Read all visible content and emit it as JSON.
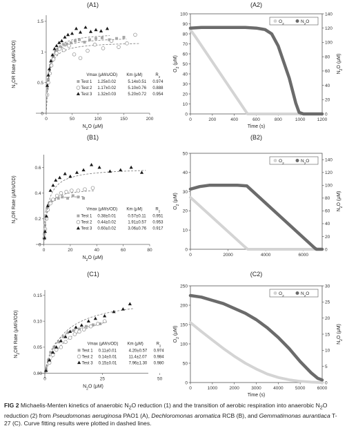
{
  "caption": {
    "label": "FIG 2",
    "p1": "Michaelis-Menten kinetics of anaerobic N",
    "p2": "O reduction (1) and the transition of aerobic respiration into anaerobic N",
    "p3": "O reduction (2) from ",
    "org1": "Pseudomonas aeruginosa",
    "p4": " PAO1 (A), ",
    "org2": "Dechloromonas aromatica",
    "p5": " RCB (B), and ",
    "org3": "Gemmatimonas aurantiaca",
    "p6": " T-27 (C). Curve fitting results were plotted in dashed lines.",
    "sub": "2"
  },
  "chart_data": [
    {
      "id": "A1",
      "type": "scatter",
      "title": "(A1)",
      "xlabel": "N2O (μM)",
      "ylabel": "N2OR Rate (μM/s/OD)",
      "xlim": [
        -20,
        200
      ],
      "ylim": [
        0,
        1.6
      ],
      "xticks": [
        0,
        50,
        100,
        150,
        200
      ],
      "yticks": [
        0,
        0.5,
        1,
        1.5
      ],
      "ytick_labels": [
        "0",
        "0.5",
        "1",
        "1.5"
      ],
      "legend_header": [
        "",
        "Vmax (μM/s/OD)",
        "Km (μM)",
        "R2"
      ],
      "series": [
        {
          "name": "Test 1",
          "vmax": "1.25±0.02",
          "km": "5.14±0.51",
          "r2": "0.974",
          "marker": "square",
          "color": "#a8a8a8",
          "x": [
            2,
            4,
            6,
            8,
            10,
            14,
            18,
            22,
            28,
            34,
            40,
            48,
            56,
            64,
            74,
            84,
            96,
            108,
            122,
            136,
            150
          ],
          "y": [
            0.4,
            0.55,
            0.66,
            0.78,
            0.86,
            0.93,
            1.0,
            1.04,
            1.08,
            1.12,
            1.13,
            1.15,
            1.18,
            1.2,
            1.16,
            1.2,
            1.22,
            1.23,
            1.2,
            1.22,
            1.24
          ],
          "fit": {
            "vmax": 1.25,
            "km": 5.14
          }
        },
        {
          "name": "Test 2",
          "vmax": "1.17±0.02",
          "km": "5.10±0.76",
          "r2": "0.888",
          "marker": "circle-open",
          "color": "#9a9a9a",
          "x": [
            2,
            4,
            7,
            10,
            14,
            20,
            26,
            34,
            44,
            54,
            66,
            80,
            94,
            110,
            126,
            140,
            156,
            172
          ],
          "y": [
            0.3,
            0.5,
            0.65,
            0.78,
            0.88,
            0.98,
            1.05,
            1.03,
            1.1,
            0.96,
            0.9,
            1.02,
            1.12,
            1.06,
            1.18,
            1.08,
            1.14,
            1.28
          ],
          "fit": {
            "vmax": 1.17,
            "km": 5.1
          }
        },
        {
          "name": "Test 3",
          "vmax": "1.32±0.03",
          "km": "5.20±0.72",
          "r2": "0.954",
          "marker": "triangle",
          "color": "#1a1a1a",
          "x": [
            2,
            4,
            6,
            9,
            12,
            16,
            20,
            25,
            30,
            36,
            42,
            50,
            58,
            66,
            76,
            86,
            96,
            106,
            118
          ],
          "y": [
            0.45,
            0.62,
            0.72,
            0.85,
            0.95,
            1.05,
            1.1,
            1.15,
            1.18,
            1.24,
            1.28,
            1.3,
            1.38,
            1.32,
            1.4,
            1.33,
            1.36,
            1.34,
            1.38
          ],
          "fit": {
            "vmax": 1.32,
            "km": 5.2
          }
        }
      ]
    },
    {
      "id": "A2",
      "type": "line",
      "title": "(A2)",
      "xlabel": "Time (s)",
      "ylabel": "O2 (μM)",
      "y2label": "N2O (μM)",
      "xlim": [
        0,
        1200
      ],
      "ylim": [
        0,
        100
      ],
      "y2lim": [
        0,
        140
      ],
      "xticks": [
        0,
        200,
        400,
        600,
        800,
        1000,
        1200
      ],
      "yticks": [
        0,
        10,
        20,
        30,
        40,
        50,
        60,
        70,
        80,
        90,
        100
      ],
      "y2ticks": [
        0,
        20,
        40,
        60,
        80,
        100,
        120,
        140
      ],
      "legend_position": "top-right",
      "series": [
        {
          "name": "O2",
          "axis": "left",
          "color": "#d4d4d4",
          "x": [
            0,
            40,
            520,
            1200
          ],
          "y": [
            84,
            78,
            0,
            0
          ]
        },
        {
          "name": "N2O",
          "axis": "right",
          "color": "#6b6b6b",
          "x": [
            0,
            100,
            300,
            500,
            600,
            680,
            740,
            800,
            900,
            960,
            990,
            1030,
            1200
          ],
          "y": [
            120,
            121,
            121,
            121,
            120,
            118,
            112,
            95,
            50,
            15,
            2,
            0,
            0
          ]
        }
      ]
    },
    {
      "id": "B1",
      "type": "scatter",
      "title": "(B1)",
      "xlabel": "N2O (μM)",
      "ylabel": "N2OR Rate (μM/s/OD)",
      "xlim": [
        -6,
        80
      ],
      "ylim": [
        0,
        0.7
      ],
      "xticks": [
        0,
        20,
        40,
        60,
        80
      ],
      "yticks": [
        0,
        0.2,
        0.4,
        0.6
      ],
      "ytick_labels": [
        "0",
        "0.2",
        "0.4",
        "0.6"
      ],
      "legend_header": [
        "",
        "Vmax (μM/s/OD)",
        "Km (μM)",
        "R2"
      ],
      "series": [
        {
          "name": "Test 1",
          "vmax": "0.38±0.01",
          "km": "0.57±0.11",
          "r2": "0.951",
          "marker": "square",
          "color": "#a8a8a8",
          "x": [
            0.3,
            0.8,
            1.5,
            2.5,
            4,
            6,
            8,
            11,
            14,
            18,
            22,
            26,
            30
          ],
          "y": [
            0.08,
            0.15,
            0.22,
            0.28,
            0.32,
            0.34,
            0.35,
            0.36,
            0.37,
            0.36,
            0.38,
            0.37,
            0.36
          ],
          "fit": {
            "vmax": 0.38,
            "km": 0.57
          }
        },
        {
          "name": "Test 2",
          "vmax": "0.44±0.02",
          "km": "1.91±0.57",
          "r2": "0.953",
          "marker": "circle-open",
          "color": "#9a9a9a",
          "x": [
            0.4,
            1,
            2,
            3,
            5,
            7,
            10,
            13,
            17,
            21,
            26,
            31,
            37
          ],
          "y": [
            0.05,
            0.12,
            0.2,
            0.27,
            0.32,
            0.35,
            0.38,
            0.4,
            0.41,
            0.42,
            0.42,
            0.43,
            0.44
          ],
          "fit": {
            "vmax": 0.44,
            "km": 1.91
          }
        },
        {
          "name": "Test 3",
          "vmax": "0.60±0.02",
          "km": "3.06±0.76",
          "r2": "0.917",
          "marker": "triangle",
          "color": "#1a1a1a",
          "x": [
            0.5,
            1,
            2,
            3,
            5,
            7,
            9,
            12,
            16,
            20,
            25,
            30,
            36,
            42,
            50,
            58,
            66,
            74
          ],
          "y": [
            0.05,
            0.1,
            0.22,
            0.3,
            0.42,
            0.46,
            0.5,
            0.52,
            0.55,
            0.53,
            0.56,
            0.58,
            0.62,
            0.6,
            0.57,
            0.58,
            0.6,
            0.56
          ],
          "fit": {
            "vmax": 0.6,
            "km": 3.06
          }
        }
      ]
    },
    {
      "id": "B2",
      "type": "line",
      "title": "(B2)",
      "xlabel": "",
      "ylabel": "O2 (μM)",
      "y2label": "N2O (μM)",
      "xlim": [
        0,
        7000
      ],
      "ylim": [
        0,
        50
      ],
      "y2lim": [
        0,
        150
      ],
      "xticks": [
        0,
        2000,
        4000,
        6000
      ],
      "yticks": [
        0,
        10,
        20,
        30,
        40,
        50
      ],
      "y2ticks": [
        0,
        20,
        40,
        60,
        80,
        100,
        120,
        140
      ],
      "legend_position": "top-right",
      "series": [
        {
          "name": "O2",
          "axis": "left",
          "color": "#d4d4d4",
          "x": [
            0,
            2900,
            3050,
            7000
          ],
          "y": [
            27,
            1.2,
            0,
            0
          ]
        },
        {
          "name": "N2O",
          "axis": "right",
          "color": "#6b6b6b",
          "x": [
            0,
            500,
            1000,
            1800,
            2500,
            3000,
            6600,
            6700,
            7000
          ],
          "y": [
            94,
            98,
            100,
            100,
            100,
            99,
            2,
            0,
            0
          ]
        }
      ]
    },
    {
      "id": "C1",
      "type": "scatter",
      "title": "(C1)",
      "xlabel": "N2O (μM)",
      "ylabel": "N2OR Rate (μM/s/OD)",
      "xlim": [
        -3,
        45
      ],
      "ylim": [
        -0.01,
        0.16
      ],
      "xticks": [
        0,
        25,
        50
      ],
      "yticks": [
        0,
        0.05,
        0.1,
        0.15
      ],
      "ytick_labels": [
        "0.00",
        "0.05",
        "0.10",
        "0.15"
      ],
      "legend_header": [
        "",
        "Vmax (μM/s/OD)",
        "Km (μM)",
        "R2"
      ],
      "series": [
        {
          "name": "Test 1",
          "vmax": "0.11±0.01",
          "km": "4.20±0.57",
          "r2": "0.974",
          "marker": "square",
          "color": "#a8a8a8",
          "x": [
            0.5,
            1.5,
            2.5,
            4,
            6,
            8,
            10,
            12.5,
            15,
            18,
            21,
            24
          ],
          "y": [
            0.01,
            0.025,
            0.04,
            0.05,
            0.06,
            0.07,
            0.078,
            0.082,
            0.085,
            0.09,
            0.093,
            0.095
          ],
          "fit": {
            "vmax": 0.11,
            "km": 4.2
          }
        },
        {
          "name": "Test 2",
          "vmax": "0.14±0.01",
          "km": "11.4±2.07",
          "r2": "0.984",
          "marker": "circle-open",
          "color": "#9a9a9a",
          "x": [
            0.5,
            2,
            3.5,
            5,
            7,
            9,
            11,
            13,
            15,
            17,
            20,
            23,
            26
          ],
          "y": [
            0.005,
            0.02,
            0.035,
            0.045,
            0.05,
            0.06,
            0.068,
            0.075,
            0.08,
            0.084,
            0.09,
            0.095,
            0.1
          ],
          "fit": {
            "vmax": 0.14,
            "km": 11.4
          }
        },
        {
          "name": "Test 3",
          "vmax": "0.15±0.01",
          "km": "7.96±1.30",
          "r2": "0.980",
          "marker": "triangle",
          "color": "#1a1a1a",
          "x": [
            0.5,
            2,
            3.5,
            5,
            7,
            9,
            11,
            13.5,
            16,
            19,
            22,
            26,
            30,
            34,
            37
          ],
          "y": [
            0.005,
            0.025,
            0.04,
            0.05,
            0.062,
            0.07,
            0.08,
            0.088,
            0.092,
            0.1,
            0.105,
            0.11,
            0.118,
            0.123,
            0.133
          ],
          "fit": {
            "vmax": 0.15,
            "km": 7.96
          }
        }
      ]
    },
    {
      "id": "C2",
      "type": "line",
      "title": "(C2)",
      "xlabel": "Time (s)",
      "ylabel": "O2 (μM)",
      "y2label": "N2O (μM)",
      "xlim": [
        0,
        6000
      ],
      "ylim": [
        0,
        250
      ],
      "y2lim": [
        0,
        30
      ],
      "xticks": [
        0,
        1000,
        2000,
        3000,
        4000,
        5000,
        6000
      ],
      "yticks": [
        0,
        50,
        100,
        150,
        200,
        250
      ],
      "y2ticks": [
        0,
        5,
        10,
        15,
        20,
        25,
        30
      ],
      "legend_position": "top-right",
      "series": [
        {
          "name": "O2",
          "axis": "left",
          "color": "#d4d4d4",
          "x": [
            0,
            500,
            1000,
            1500,
            2000,
            2500,
            3000,
            3500,
            4000,
            4500,
            5000,
            5500,
            6000
          ],
          "y": [
            155,
            132,
            110,
            88,
            68,
            50,
            35,
            22,
            13,
            7,
            3,
            1,
            0
          ]
        },
        {
          "name": "N2O",
          "axis": "right",
          "color": "#6b6b6b",
          "x": [
            0,
            500,
            1000,
            1500,
            2000,
            2500,
            3000,
            3500,
            4000,
            4500,
            5000,
            5500,
            5800,
            6000
          ],
          "y": [
            27,
            26.5,
            25.5,
            24.5,
            23,
            21.5,
            19.5,
            17,
            14,
            10.5,
            6.5,
            3,
            1.3,
            0.8
          ]
        }
      ]
    }
  ]
}
